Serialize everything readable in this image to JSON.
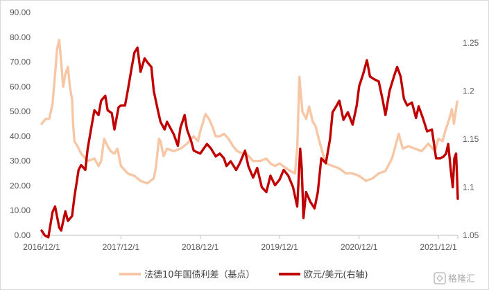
{
  "chart_data": {
    "type": "line",
    "title": "",
    "xlabel": "",
    "ylabel": "",
    "x_range": [
      "2016-12-01",
      "2022-02-28"
    ],
    "x_ticks": [
      "2016/12/1",
      "2017/12/1",
      "2018/12/1",
      "2019/12/1",
      "2020/12/1",
      "2021/12/1"
    ],
    "y_left": {
      "range": [
        0,
        90
      ],
      "ticks": [
        "0.00",
        "10.00",
        "20.00",
        "30.00",
        "40.00",
        "50.00",
        "60.00",
        "70.00",
        "80.00",
        "90.00"
      ]
    },
    "y_right": {
      "range": [
        1.05,
        1.25
      ],
      "ticks": [
        "1.05",
        "1.1",
        "1.15",
        "1.2",
        "1.25"
      ]
    },
    "grid": false,
    "legend_position": "bottom",
    "series": [
      {
        "name": "法德10年国债利差（基点）",
        "axis": "left",
        "color": "#f7c6a5",
        "points": [
          [
            "2016-12-01",
            45
          ],
          [
            "2016-12-20",
            47
          ],
          [
            "2017-01-05",
            47
          ],
          [
            "2017-01-20",
            53
          ],
          [
            "2017-02-01",
            65
          ],
          [
            "2017-02-10",
            75
          ],
          [
            "2017-02-20",
            79
          ],
          [
            "2017-03-01",
            70
          ],
          [
            "2017-03-10",
            60
          ],
          [
            "2017-03-20",
            65
          ],
          [
            "2017-04-01",
            68
          ],
          [
            "2017-04-10",
            60
          ],
          [
            "2017-04-20",
            55
          ],
          [
            "2017-04-25",
            45
          ],
          [
            "2017-05-01",
            38
          ],
          [
            "2017-05-15",
            36
          ],
          [
            "2017-06-01",
            33
          ],
          [
            "2017-07-01",
            30
          ],
          [
            "2017-08-01",
            31
          ],
          [
            "2017-08-20",
            28
          ],
          [
            "2017-09-01",
            30
          ],
          [
            "2017-09-15",
            39
          ],
          [
            "2017-10-01",
            36
          ],
          [
            "2017-10-15",
            34
          ],
          [
            "2017-11-01",
            33
          ],
          [
            "2017-11-15",
            35
          ],
          [
            "2017-12-01",
            28
          ],
          [
            "2018-01-01",
            25
          ],
          [
            "2018-02-01",
            24
          ],
          [
            "2018-03-01",
            22
          ],
          [
            "2018-04-01",
            21
          ],
          [
            "2018-05-01",
            23
          ],
          [
            "2018-05-10",
            27
          ],
          [
            "2018-05-25",
            39
          ],
          [
            "2018-06-01",
            38
          ],
          [
            "2018-06-15",
            32
          ],
          [
            "2018-07-01",
            35
          ],
          [
            "2018-08-01",
            34
          ],
          [
            "2018-09-01",
            35
          ],
          [
            "2018-10-01",
            37
          ],
          [
            "2018-11-01",
            40
          ],
          [
            "2018-11-20",
            38
          ],
          [
            "2018-12-01",
            42
          ],
          [
            "2018-12-15",
            46
          ],
          [
            "2018-12-25",
            49
          ],
          [
            "2019-01-10",
            47
          ],
          [
            "2019-01-25",
            44
          ],
          [
            "2019-02-10",
            40
          ],
          [
            "2019-03-01",
            40
          ],
          [
            "2019-03-20",
            41
          ],
          [
            "2019-04-10",
            39
          ],
          [
            "2019-05-01",
            36
          ],
          [
            "2019-05-20",
            34
          ],
          [
            "2019-06-15",
            33
          ],
          [
            "2019-07-01",
            33
          ],
          [
            "2019-08-01",
            30
          ],
          [
            "2019-09-01",
            30
          ],
          [
            "2019-10-01",
            31
          ],
          [
            "2019-10-20",
            29
          ],
          [
            "2019-11-10",
            28
          ],
          [
            "2019-12-01",
            29
          ],
          [
            "2020-01-01",
            27
          ],
          [
            "2020-01-20",
            26
          ],
          [
            "2020-02-10",
            25
          ],
          [
            "2020-02-20",
            35
          ],
          [
            "2020-03-01",
            64
          ],
          [
            "2020-03-05",
            60
          ],
          [
            "2020-03-15",
            50
          ],
          [
            "2020-04-01",
            47
          ],
          [
            "2020-04-15",
            52
          ],
          [
            "2020-05-01",
            46
          ],
          [
            "2020-05-15",
            44
          ],
          [
            "2020-06-01",
            38
          ],
          [
            "2020-06-20",
            32
          ],
          [
            "2020-07-01",
            29
          ],
          [
            "2020-08-01",
            28
          ],
          [
            "2020-09-01",
            27
          ],
          [
            "2020-10-01",
            25
          ],
          [
            "2020-11-01",
            25
          ],
          [
            "2020-12-01",
            24
          ],
          [
            "2021-01-01",
            22
          ],
          [
            "2021-02-01",
            23
          ],
          [
            "2021-03-01",
            25
          ],
          [
            "2021-04-01",
            26
          ],
          [
            "2021-05-01",
            31
          ],
          [
            "2021-05-20",
            37
          ],
          [
            "2021-06-01",
            41
          ],
          [
            "2021-06-20",
            35
          ],
          [
            "2021-07-15",
            36
          ],
          [
            "2021-08-15",
            35
          ],
          [
            "2021-09-15",
            34
          ],
          [
            "2021-10-15",
            37
          ],
          [
            "2021-11-15",
            34
          ],
          [
            "2021-12-01",
            39
          ],
          [
            "2021-12-20",
            38
          ],
          [
            "2022-01-01",
            42
          ],
          [
            "2022-01-20",
            47
          ],
          [
            "2022-02-01",
            51
          ],
          [
            "2022-02-10",
            45
          ],
          [
            "2022-02-25",
            54
          ]
        ]
      },
      {
        "name": "欧元/美元(右轴)",
        "axis": "right",
        "color": "#c00000",
        "points": [
          [
            "2016-12-01",
            1.055
          ],
          [
            "2016-12-15",
            1.05
          ],
          [
            "2017-01-01",
            1.048
          ],
          [
            "2017-01-20",
            1.074
          ],
          [
            "2017-02-01",
            1.08
          ],
          [
            "2017-02-20",
            1.058
          ],
          [
            "2017-03-01",
            1.055
          ],
          [
            "2017-03-20",
            1.075
          ],
          [
            "2017-04-01",
            1.065
          ],
          [
            "2017-04-20",
            1.07
          ],
          [
            "2017-05-01",
            1.09
          ],
          [
            "2017-05-20",
            1.118
          ],
          [
            "2017-06-01",
            1.123
          ],
          [
            "2017-06-20",
            1.118
          ],
          [
            "2017-07-01",
            1.14
          ],
          [
            "2017-07-20",
            1.165
          ],
          [
            "2017-08-01",
            1.18
          ],
          [
            "2017-08-20",
            1.175
          ],
          [
            "2017-09-01",
            1.19
          ],
          [
            "2017-09-20",
            1.195
          ],
          [
            "2017-10-01",
            1.18
          ],
          [
            "2017-10-20",
            1.177
          ],
          [
            "2017-11-01",
            1.16
          ],
          [
            "2017-11-20",
            1.183
          ],
          [
            "2017-12-01",
            1.185
          ],
          [
            "2017-12-20",
            1.185
          ],
          [
            "2018-01-01",
            1.2
          ],
          [
            "2018-01-20",
            1.225
          ],
          [
            "2018-02-01",
            1.24
          ],
          [
            "2018-02-15",
            1.245
          ],
          [
            "2018-03-01",
            1.22
          ],
          [
            "2018-03-20",
            1.234
          ],
          [
            "2018-04-01",
            1.23
          ],
          [
            "2018-04-20",
            1.225
          ],
          [
            "2018-05-01",
            1.2
          ],
          [
            "2018-05-20",
            1.18
          ],
          [
            "2018-06-01",
            1.168
          ],
          [
            "2018-06-20",
            1.16
          ],
          [
            "2018-07-01",
            1.168
          ],
          [
            "2018-08-01",
            1.155
          ],
          [
            "2018-08-20",
            1.143
          ],
          [
            "2018-09-01",
            1.162
          ],
          [
            "2018-09-20",
            1.175
          ],
          [
            "2018-10-01",
            1.16
          ],
          [
            "2018-10-20",
            1.148
          ],
          [
            "2018-11-01",
            1.138
          ],
          [
            "2018-12-01",
            1.135
          ],
          [
            "2019-01-01",
            1.145
          ],
          [
            "2019-01-20",
            1.14
          ],
          [
            "2019-02-10",
            1.132
          ],
          [
            "2019-03-01",
            1.135
          ],
          [
            "2019-03-20",
            1.13
          ],
          [
            "2019-04-01",
            1.122
          ],
          [
            "2019-04-20",
            1.127
          ],
          [
            "2019-05-15",
            1.118
          ],
          [
            "2019-06-01",
            1.125
          ],
          [
            "2019-06-25",
            1.138
          ],
          [
            "2019-07-10",
            1.122
          ],
          [
            "2019-08-01",
            1.11
          ],
          [
            "2019-08-20",
            1.12
          ],
          [
            "2019-09-10",
            1.1
          ],
          [
            "2019-10-01",
            1.095
          ],
          [
            "2019-10-20",
            1.112
          ],
          [
            "2019-11-10",
            1.102
          ],
          [
            "2019-12-01",
            1.108
          ],
          [
            "2019-12-20",
            1.118
          ],
          [
            "2020-01-10",
            1.112
          ],
          [
            "2020-02-01",
            1.1
          ],
          [
            "2020-02-20",
            1.08
          ],
          [
            "2020-03-05",
            1.14
          ],
          [
            "2020-03-12",
            1.12
          ],
          [
            "2020-03-20",
            1.068
          ],
          [
            "2020-04-01",
            1.095
          ],
          [
            "2020-04-20",
            1.085
          ],
          [
            "2020-05-10",
            1.078
          ],
          [
            "2020-05-25",
            1.095
          ],
          [
            "2020-06-10",
            1.13
          ],
          [
            "2020-07-01",
            1.125
          ],
          [
            "2020-07-20",
            1.15
          ],
          [
            "2020-08-01",
            1.178
          ],
          [
            "2020-08-20",
            1.185
          ],
          [
            "2020-09-01",
            1.19
          ],
          [
            "2020-09-20",
            1.17
          ],
          [
            "2020-10-10",
            1.178
          ],
          [
            "2020-11-01",
            1.165
          ],
          [
            "2020-11-20",
            1.185
          ],
          [
            "2020-12-01",
            1.205
          ],
          [
            "2020-12-20",
            1.218
          ],
          [
            "2021-01-06",
            1.232
          ],
          [
            "2021-01-20",
            1.215
          ],
          [
            "2021-02-10",
            1.212
          ],
          [
            "2021-03-01",
            1.21
          ],
          [
            "2021-03-20",
            1.19
          ],
          [
            "2021-04-01",
            1.175
          ],
          [
            "2021-04-20",
            1.2
          ],
          [
            "2021-05-10",
            1.215
          ],
          [
            "2021-05-25",
            1.225
          ],
          [
            "2021-06-10",
            1.215
          ],
          [
            "2021-06-25",
            1.192
          ],
          [
            "2021-07-10",
            1.185
          ],
          [
            "2021-08-01",
            1.188
          ],
          [
            "2021-08-20",
            1.172
          ],
          [
            "2021-09-01",
            1.184
          ],
          [
            "2021-09-20",
            1.172
          ],
          [
            "2021-10-10",
            1.158
          ],
          [
            "2021-11-01",
            1.16
          ],
          [
            "2021-11-20",
            1.13
          ],
          [
            "2021-12-10",
            1.13
          ],
          [
            "2021-12-25",
            1.132
          ],
          [
            "2022-01-05",
            1.135
          ],
          [
            "2022-01-15",
            1.145
          ],
          [
            "2022-01-28",
            1.115
          ],
          [
            "2022-02-05",
            1.1
          ],
          [
            "2022-02-12",
            1.13
          ],
          [
            "2022-02-20",
            1.135
          ],
          [
            "2022-02-25",
            1.108
          ],
          [
            "2022-02-28",
            1.088
          ]
        ]
      }
    ]
  },
  "watermark": {
    "text": "格隆汇"
  }
}
